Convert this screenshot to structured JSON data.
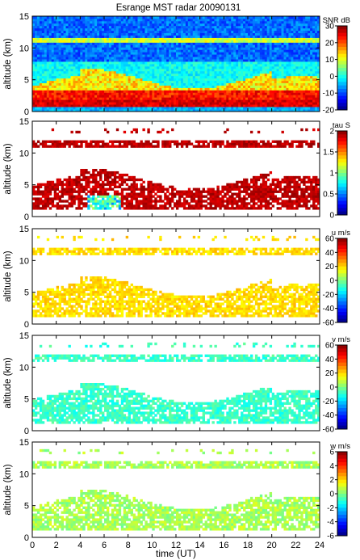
{
  "figure": {
    "title": "Esrange MST radar 20090131",
    "xlabel": "time (UT)"
  },
  "chart_data": [
    {
      "type": "heatmap",
      "panel": "snr",
      "ylabel": "altitude (km)",
      "xlim": [
        0,
        24
      ],
      "ylim": [
        0,
        15
      ],
      "xticks": [
        0,
        2,
        4,
        6,
        8,
        10,
        12,
        14,
        16,
        18,
        20,
        22,
        24
      ],
      "yticks": [
        0,
        5,
        10,
        15
      ],
      "colorbar": {
        "label": "SNR dB",
        "range": [
          -20,
          30
        ],
        "ticks": [
          30,
          20,
          10,
          0,
          -10,
          -20
        ]
      }
    },
    {
      "type": "heatmap",
      "panel": "tau",
      "ylabel": "altitude (km)",
      "xlim": [
        0,
        24
      ],
      "ylim": [
        0,
        15
      ],
      "xticks": [
        0,
        2,
        4,
        6,
        8,
        10,
        12,
        14,
        16,
        18,
        20,
        22,
        24
      ],
      "yticks": [
        0,
        5,
        10,
        15
      ],
      "colorbar": {
        "label": "tau S",
        "range": [
          0,
          2
        ],
        "ticks": [
          2,
          1.5,
          1,
          0.5,
          0
        ]
      }
    },
    {
      "type": "heatmap",
      "panel": "u",
      "ylabel": "altitude (km)",
      "xlim": [
        0,
        24
      ],
      "ylim": [
        0,
        15
      ],
      "xticks": [
        0,
        2,
        4,
        6,
        8,
        10,
        12,
        14,
        16,
        18,
        20,
        22,
        24
      ],
      "yticks": [
        0,
        5,
        10,
        15
      ],
      "colorbar": {
        "label": "u m/s",
        "range": [
          -60,
          60
        ],
        "ticks": [
          60,
          40,
          20,
          0,
          -20,
          -40,
          -60
        ]
      }
    },
    {
      "type": "heatmap",
      "panel": "v",
      "ylabel": "altitude (km)",
      "xlim": [
        0,
        24
      ],
      "ylim": [
        0,
        15
      ],
      "xticks": [
        0,
        2,
        4,
        6,
        8,
        10,
        12,
        14,
        16,
        18,
        20,
        22,
        24
      ],
      "yticks": [
        0,
        5,
        10,
        15
      ],
      "colorbar": {
        "label": "v m/s",
        "range": [
          -60,
          60
        ],
        "ticks": [
          60,
          40,
          20,
          0,
          -20,
          -40,
          -60
        ]
      }
    },
    {
      "type": "heatmap",
      "panel": "w",
      "ylabel": "altitude (km)",
      "xlim": [
        0,
        24
      ],
      "ylim": [
        0,
        15
      ],
      "xticks": [
        0,
        2,
        4,
        6,
        8,
        10,
        12,
        14,
        16,
        18,
        20,
        22,
        24
      ],
      "yticks": [
        0,
        5,
        10,
        15
      ],
      "colorbar": {
        "label": "w m/s",
        "range": [
          -6,
          6
        ],
        "ticks": [
          6,
          4,
          2,
          0,
          -2,
          -4,
          -6
        ]
      }
    }
  ]
}
